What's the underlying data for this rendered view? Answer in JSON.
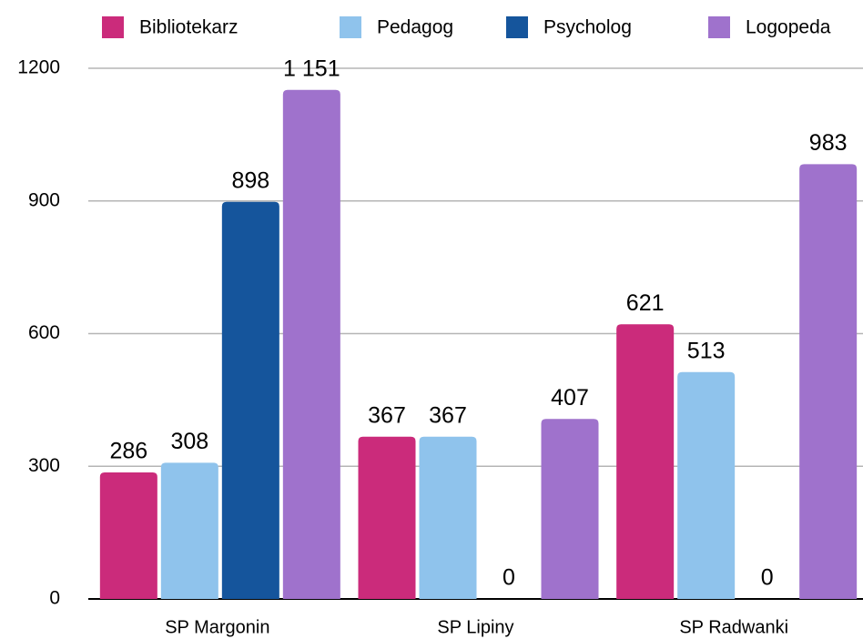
{
  "chart_data": {
    "type": "bar",
    "categories": [
      "SP Margonin",
      "SP Lipiny",
      "SP Radwanki"
    ],
    "series": [
      {
        "name": "Bibliotekarz",
        "color": "#cb2b7b",
        "values": [
          286,
          367,
          621
        ]
      },
      {
        "name": "Pedagog",
        "color": "#8fc3ec",
        "values": [
          308,
          367,
          513
        ]
      },
      {
        "name": "Psycholog",
        "color": "#15559c",
        "values": [
          898,
          0,
          0
        ]
      },
      {
        "name": "Logopeda",
        "color": "#9f72cc",
        "values": [
          1151,
          407,
          983
        ],
        "value_labels": [
          "1 151",
          "407",
          "983"
        ]
      }
    ],
    "ylim": [
      0,
      1200
    ],
    "yticks": [
      0,
      300,
      600,
      900,
      1200
    ],
    "grid": true,
    "legend": "top"
  }
}
